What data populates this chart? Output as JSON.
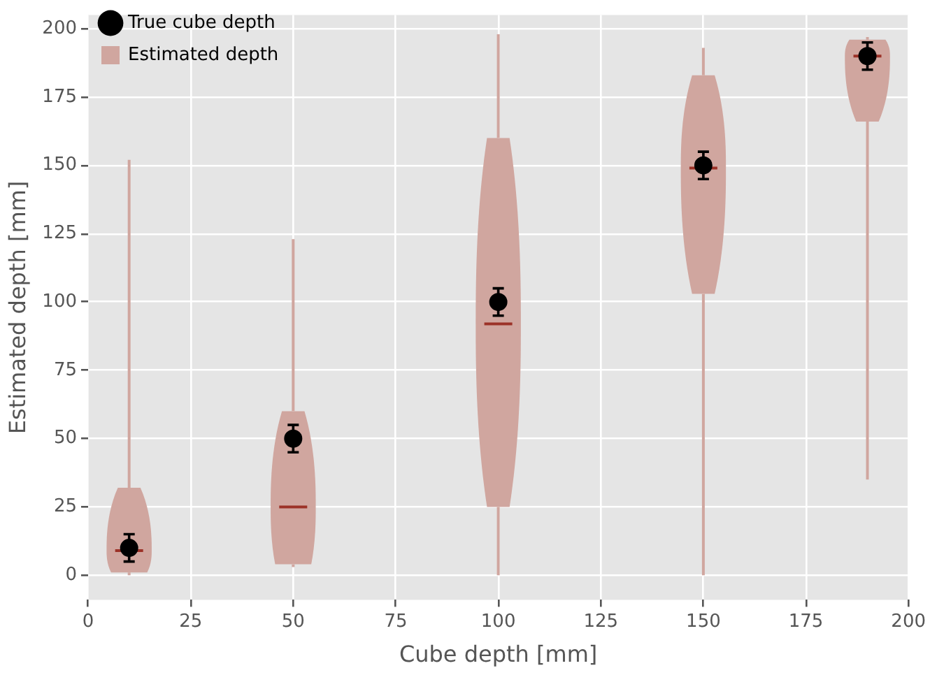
{
  "chart_data": {
    "type": "scatter",
    "xlabel": "Cube depth [mm]",
    "ylabel": "Estimated depth [mm]",
    "xlim": [
      0,
      200
    ],
    "xticks": [
      0,
      25,
      50,
      75,
      100,
      125,
      150,
      175,
      200
    ],
    "ylim": [
      -9,
      205
    ],
    "yticks": [
      0,
      25,
      50,
      75,
      100,
      125,
      150,
      175,
      200
    ],
    "grid": true,
    "legend": "top left",
    "marker": "circle",
    "series": [
      {
        "name": "True cube depth",
        "type": "scatter",
        "color": "#000000",
        "x": [
          10,
          50,
          100,
          150,
          190
        ],
        "values": [
          10,
          50,
          100,
          150,
          190
        ],
        "errors": [
          5,
          5,
          5,
          5,
          5
        ]
      },
      {
        "name": "Estimated depth",
        "type": "box",
        "color": "#d0a69f",
        "x": [
          10,
          50,
          100,
          150,
          190
        ],
        "boxes": [
          {
            "low": 0,
            "q1": 1,
            "median": 9,
            "q3": 32,
            "high": 152
          },
          {
            "low": 3,
            "q1": 4,
            "median": 25,
            "q3": 60,
            "high": 123
          },
          {
            "low": 0,
            "q1": 25,
            "median": 92,
            "q3": 160,
            "high": 198
          },
          {
            "low": 0,
            "q1": 103,
            "median": 149,
            "q3": 183,
            "high": 193
          },
          {
            "low": 35,
            "q1": 166,
            "median": 190,
            "q3": 196,
            "high": 197
          }
        ]
      }
    ]
  }
}
